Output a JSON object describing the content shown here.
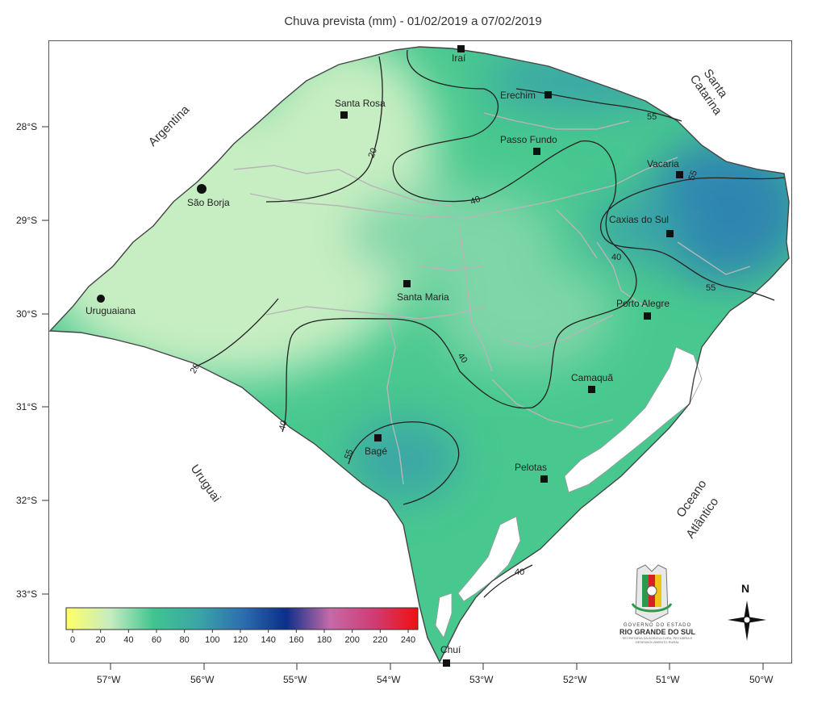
{
  "title": "Chuva prevista (mm) - 01/02/2019 a 07/02/2019",
  "lat_ticks": [
    "28°S",
    "29°S",
    "30°S",
    "31°S",
    "32°S",
    "33°S"
  ],
  "lon_ticks": [
    "57°W",
    "56°W",
    "55°W",
    "54°W",
    "53°W",
    "52°W",
    "51°W",
    "50°W"
  ],
  "neighbors": {
    "argentina": "Argentina",
    "santa_catarina": [
      "Santa",
      "Catarina"
    ],
    "uruguai": "Uruguai",
    "oceano": [
      "Oceano",
      "Atlântico"
    ]
  },
  "cities": [
    {
      "name": "Iraí"
    },
    {
      "name": "Erechim"
    },
    {
      "name": "Santa Rosa"
    },
    {
      "name": "Passo Fundo"
    },
    {
      "name": "Vacaria"
    },
    {
      "name": "São Borja"
    },
    {
      "name": "Caxias do Sul"
    },
    {
      "name": "Santa Maria"
    },
    {
      "name": "Uruguaiana"
    },
    {
      "name": "Porto Alegre"
    },
    {
      "name": "Camaquã"
    },
    {
      "name": "Bagé"
    },
    {
      "name": "Pelotas"
    },
    {
      "name": "Chuí"
    }
  ],
  "contour_labels": [
    "20",
    "20",
    "40",
    "40",
    "40",
    "40",
    "40",
    "55",
    "55",
    "55",
    "55"
  ],
  "colorbar": {
    "labels": [
      "0",
      "20",
      "40",
      "60",
      "80",
      "100",
      "120",
      "140",
      "160",
      "180",
      "200",
      "220",
      "240"
    ],
    "colors": [
      "#ffff66",
      "#c6ecc0",
      "#3fc48f",
      "#3aa6a6",
      "#2d6fb0",
      "#0b2f8a",
      "#c46aa8",
      "#d03c74",
      "#f01010"
    ]
  },
  "north_label": "N",
  "logo": {
    "line1": "GOVERNO DO ESTADO",
    "line2": "RIO GRANDE DO SUL",
    "line3": "SECRETARIA DA AGRICULTURA, PECUÁRIA E DESENVOLVIMENTO RURAL"
  }
}
